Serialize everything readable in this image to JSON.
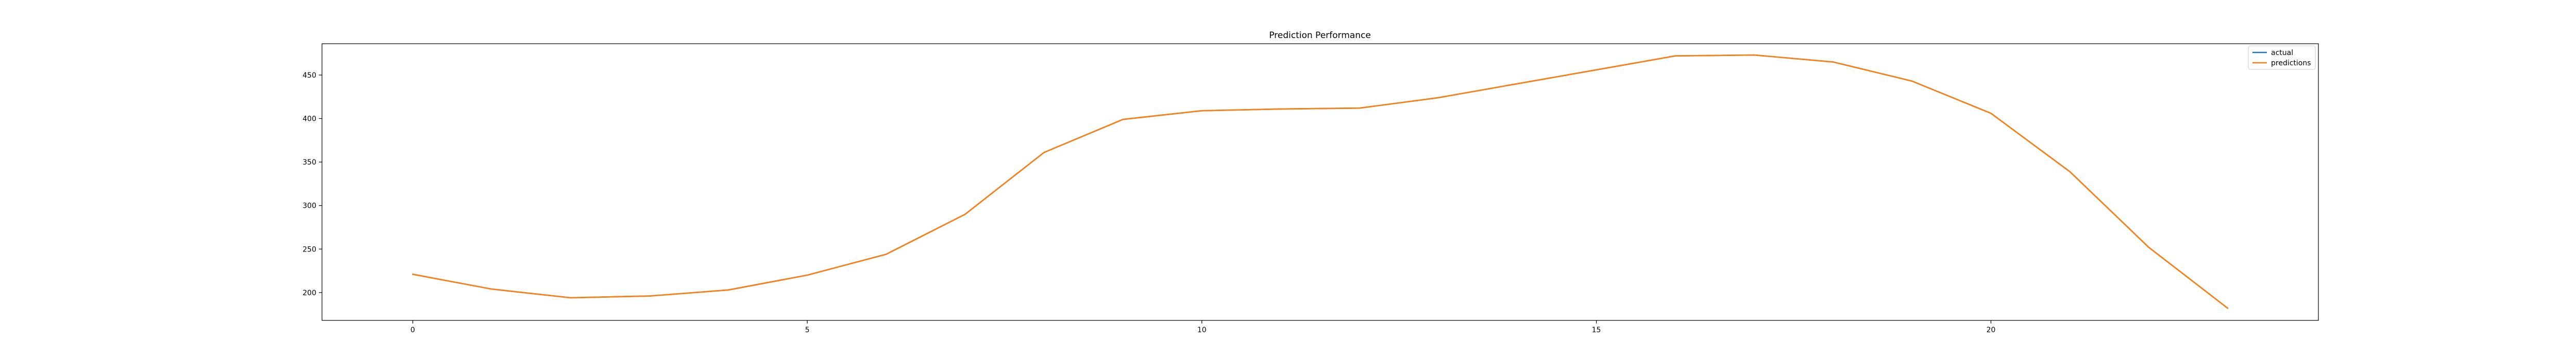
{
  "chart_data": {
    "type": "line",
    "title": "Prediction Performance",
    "xlabel": "",
    "ylabel": "",
    "xlim": [
      -1.15,
      24.15
    ],
    "ylim": [
      168,
      486
    ],
    "xticks": [
      0,
      5,
      10,
      15,
      20
    ],
    "yticks": [
      200,
      250,
      300,
      350,
      400,
      450
    ],
    "grid": false,
    "legend_position": "top-right",
    "x": [
      0,
      1,
      2,
      3,
      4,
      5,
      6,
      7,
      8,
      9,
      10,
      11,
      12,
      13,
      14,
      15,
      16,
      17,
      18,
      19,
      20,
      21,
      22,
      23
    ],
    "series": [
      {
        "name": "actual",
        "color": "#1f77b4",
        "values": [
          221,
          204,
          194,
          196,
          203,
          220,
          244,
          290,
          361,
          399,
          409,
          411,
          412,
          424,
          440,
          456,
          472,
          473,
          465,
          443,
          406,
          339,
          252,
          182
        ]
      },
      {
        "name": "predictions",
        "color": "#ff7f0e",
        "values": [
          221,
          204,
          194,
          196,
          203,
          220,
          244,
          290,
          361,
          399,
          409,
          411,
          412,
          424,
          440,
          456,
          472,
          473,
          465,
          443,
          406,
          339,
          252,
          182
        ]
      }
    ]
  }
}
